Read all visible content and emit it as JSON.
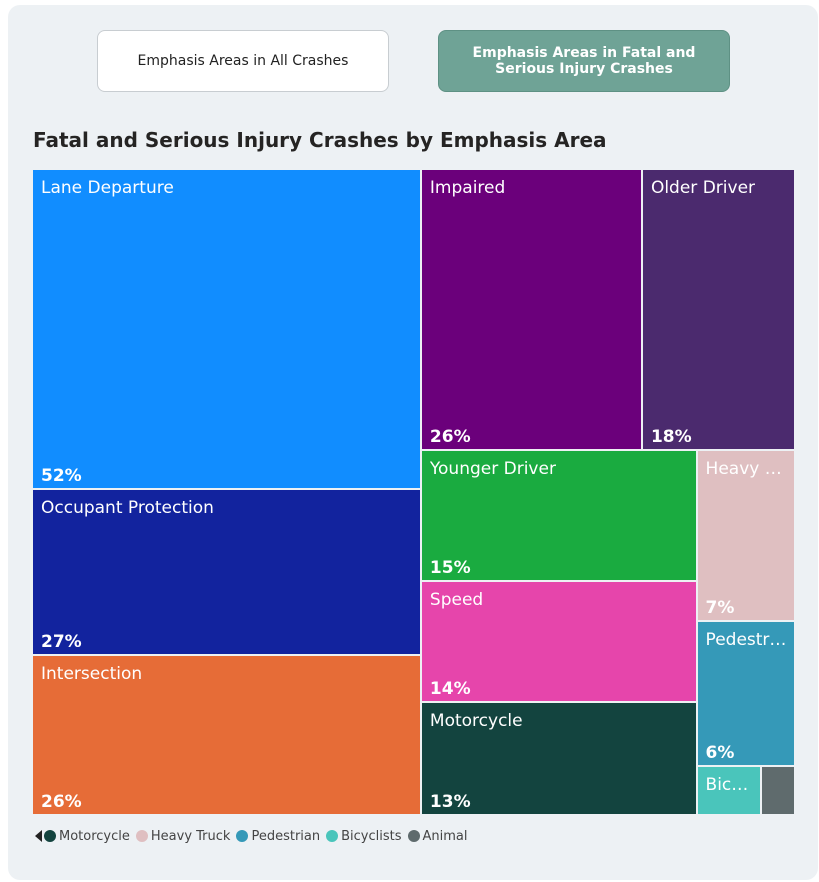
{
  "buttons": [
    "Emphasis Areas in All Crashes",
    "Emphasis Areas in Fatal and Serious Injury Crashes"
  ],
  "chart_data": {
    "type": "treemap",
    "title": "Fatal and Serious Injury Crashes by Emphasis Area",
    "categories": [
      "Lane Departure",
      "Occupant Protection",
      "Intersection",
      "Impaired",
      "Older Driver",
      "Younger Driver",
      "Speed",
      "Motorcycle",
      "Heavy Truck",
      "Pedestrian",
      "Bicyclists",
      "Animal"
    ],
    "values": [
      52,
      27,
      26,
      26,
      18,
      15,
      14,
      13,
      7,
      6,
      1.3,
      0.7
    ],
    "value_labels": [
      "52%",
      "27%",
      "26%",
      "26%",
      "18%",
      "15%",
      "14%",
      "13%",
      "7%",
      "6%",
      null,
      null
    ],
    "colors": [
      "#118dff",
      "#12239e",
      "#e66c37",
      "#6b007b",
      "#4b2a6e",
      "#1aab40",
      "#e645ab",
      "#13443f",
      "#dfbfc1",
      "#3599b8",
      "#4ac5bb",
      "#5f6b6d"
    ],
    "legend_shown": [
      7,
      8,
      9,
      10,
      11
    ]
  }
}
